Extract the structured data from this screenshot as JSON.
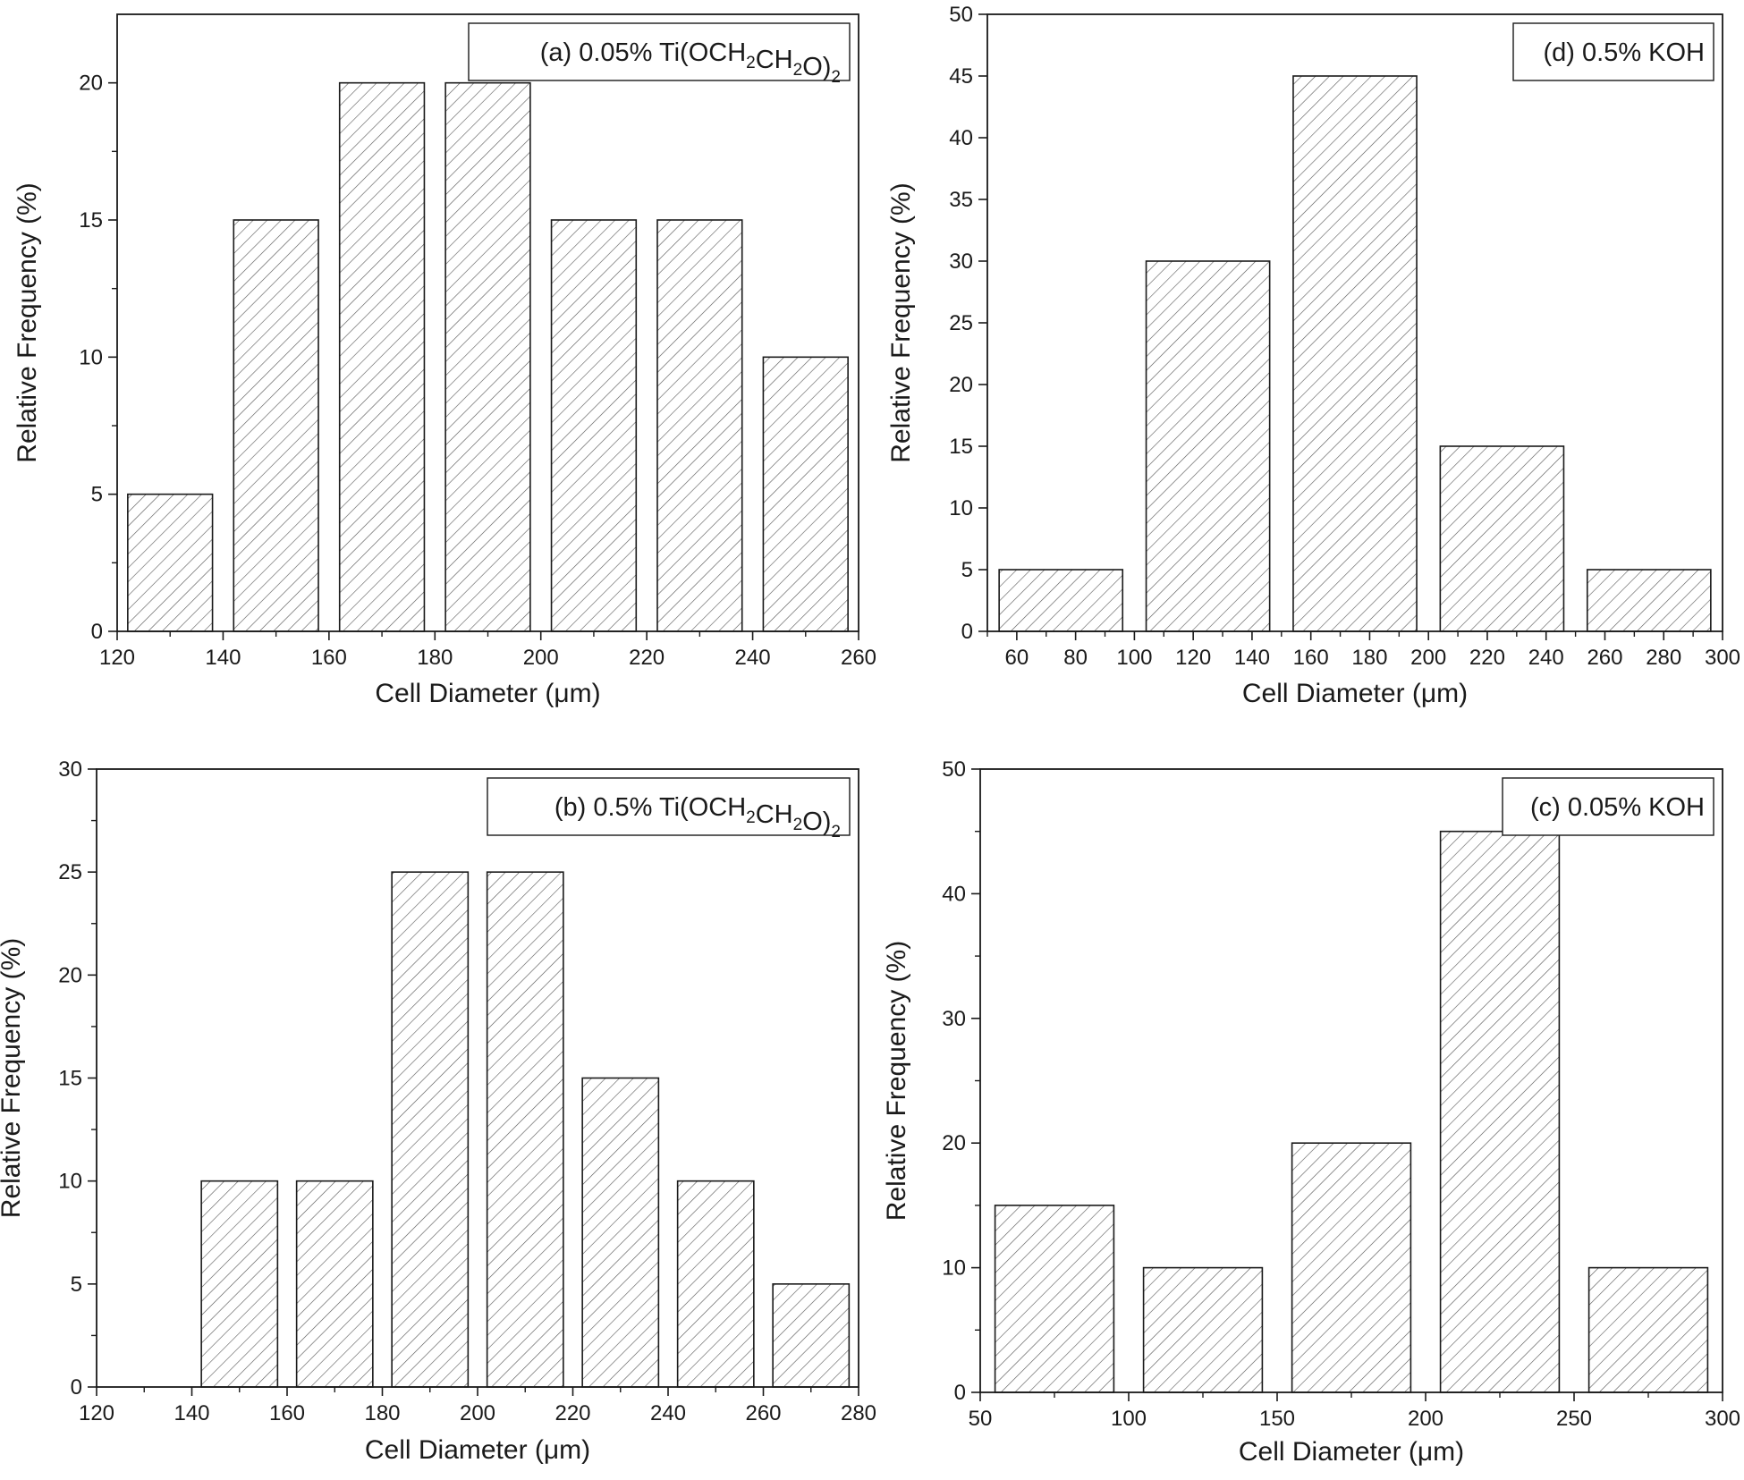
{
  "chart_data": [
    {
      "id": "a",
      "type": "bar",
      "legend": "(a) 0.05% Ti(OCH2CH2O)2",
      "legend_parts": [
        {
          "t": "(a) 0.05% Ti(OCH"
        },
        {
          "t": "2",
          "sub": true
        },
        {
          "t": "CH"
        },
        {
          "t": "2",
          "sub": true
        },
        {
          "t": "O)"
        },
        {
          "t": "2",
          "sub": true
        }
      ],
      "xlabel": "Cell Diameter (μm)",
      "ylabel": "Relative Frequency (%)",
      "xlim": [
        120,
        260
      ],
      "ylim": [
        0,
        22.5
      ],
      "xticks": [
        120,
        140,
        160,
        180,
        200,
        220,
        240,
        260
      ],
      "xminor": [
        130,
        150,
        170,
        190,
        210,
        230,
        250
      ],
      "yticks": [
        0,
        5,
        10,
        15,
        20
      ],
      "yminor": [
        2.5,
        7.5,
        12.5,
        17.5
      ],
      "bins": [
        {
          "from": 122,
          "to": 138,
          "value": 5
        },
        {
          "from": 142,
          "to": 158,
          "value": 15
        },
        {
          "from": 162,
          "to": 178,
          "value": 20
        },
        {
          "from": 182,
          "to": 198,
          "value": 20
        },
        {
          "from": 202,
          "to": 218,
          "value": 15
        },
        {
          "from": 222,
          "to": 238,
          "value": 15
        },
        {
          "from": 242,
          "to": 258,
          "value": 10
        }
      ],
      "legend_position": "top-right"
    },
    {
      "id": "d",
      "type": "bar",
      "legend": "(d) 0.5% KOH",
      "legend_parts": [
        {
          "t": "(d) 0.5% KOH"
        }
      ],
      "xlabel": "Cell Diameter (μm)",
      "ylabel": "Relative Frequency (%)",
      "xlim": [
        50,
        300
      ],
      "ylim": [
        0,
        50
      ],
      "xticks": [
        60,
        80,
        100,
        120,
        140,
        160,
        180,
        200,
        220,
        240,
        260,
        280,
        300
      ],
      "xminor": [
        50,
        70,
        90,
        110,
        130,
        150,
        170,
        190,
        210,
        230,
        250,
        270,
        290
      ],
      "yticks": [
        0,
        5,
        10,
        15,
        20,
        25,
        30,
        35,
        40,
        45,
        50
      ],
      "yminor": [],
      "bins": [
        {
          "from": 54,
          "to": 96,
          "value": 5
        },
        {
          "from": 104,
          "to": 146,
          "value": 30
        },
        {
          "from": 154,
          "to": 196,
          "value": 45
        },
        {
          "from": 204,
          "to": 246,
          "value": 15
        },
        {
          "from": 254,
          "to": 296,
          "value": 5
        }
      ],
      "legend_position": "top-right"
    },
    {
      "id": "b",
      "type": "bar",
      "legend": "(b) 0.5% Ti(OCH2CH2O)2",
      "legend_parts": [
        {
          "t": "(b) 0.5% Ti(OCH"
        },
        {
          "t": "2",
          "sub": true
        },
        {
          "t": "CH"
        },
        {
          "t": "2",
          "sub": true
        },
        {
          "t": "O)"
        },
        {
          "t": "2",
          "sub": true
        }
      ],
      "xlabel": "Cell Diameter (μm)",
      "ylabel": "Relative Frequency (%)",
      "xlim": [
        120,
        280
      ],
      "ylim": [
        0,
        30
      ],
      "xticks": [
        120,
        140,
        160,
        180,
        200,
        220,
        240,
        260,
        280
      ],
      "xminor": [
        130,
        150,
        170,
        190,
        210,
        230,
        250,
        270
      ],
      "yticks": [
        0,
        5,
        10,
        15,
        20,
        25,
        30
      ],
      "yminor": [
        2.5,
        7.5,
        12.5,
        17.5,
        22.5,
        27.5
      ],
      "bins": [
        {
          "from": 142,
          "to": 158,
          "value": 10
        },
        {
          "from": 162,
          "to": 178,
          "value": 10
        },
        {
          "from": 182,
          "to": 198,
          "value": 25
        },
        {
          "from": 202,
          "to": 218,
          "value": 25
        },
        {
          "from": 222,
          "to": 238,
          "value": 15
        },
        {
          "from": 242,
          "to": 258,
          "value": 10
        },
        {
          "from": 262,
          "to": 278,
          "value": 5
        }
      ],
      "legend_position": "top-right"
    },
    {
      "id": "c",
      "type": "bar",
      "legend": "(c) 0.05% KOH",
      "legend_parts": [
        {
          "t": "(c) 0.05% KOH"
        }
      ],
      "xlabel": "Cell Diameter (μm)",
      "ylabel": "Relative Frequency (%)",
      "xlim": [
        50,
        300
      ],
      "ylim": [
        0,
        50
      ],
      "xticks": [
        50,
        100,
        150,
        200,
        250,
        300
      ],
      "xminor": [
        75,
        125,
        175,
        225,
        275
      ],
      "yticks": [
        0,
        10,
        20,
        30,
        40,
        50
      ],
      "yminor": [
        5,
        15,
        25,
        35,
        45
      ],
      "bins": [
        {
          "from": 55,
          "to": 95,
          "value": 15
        },
        {
          "from": 105,
          "to": 145,
          "value": 10
        },
        {
          "from": 155,
          "to": 195,
          "value": 20
        },
        {
          "from": 205,
          "to": 245,
          "value": 45
        },
        {
          "from": 255,
          "to": 295,
          "value": 10
        }
      ],
      "legend_position": "top-right"
    }
  ]
}
